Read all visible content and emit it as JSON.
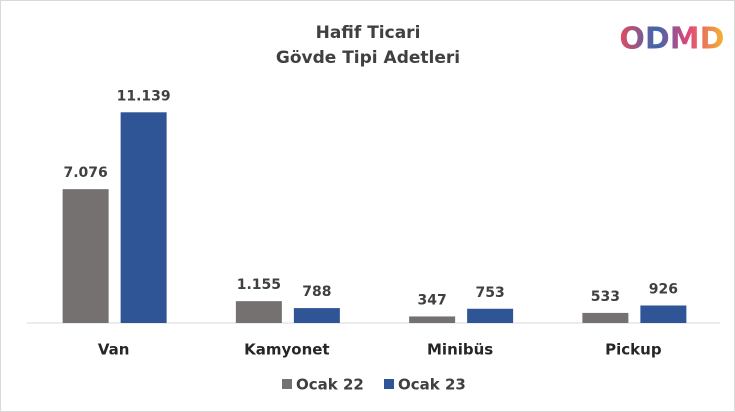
{
  "chart_data": {
    "type": "bar",
    "title": [
      "Hafif Ticari",
      "Gövde Tipi Adetleri"
    ],
    "logo": "ODMD",
    "categories": [
      "Van",
      "Kamyonet",
      "Minibüs",
      "Pickup"
    ],
    "series": [
      {
        "name": "Ocak 22",
        "color": "#767171",
        "values": [
          7076,
          1155,
          347,
          533
        ],
        "value_labels": [
          "7.076",
          "1.155",
          "347",
          "533"
        ]
      },
      {
        "name": "Ocak 23",
        "color": "#2f5597",
        "values": [
          11139,
          788,
          753,
          926
        ],
        "value_labels": [
          "11.139",
          "788",
          "753",
          "926"
        ]
      }
    ],
    "ylim": [
      0,
      12000
    ],
    "legend": "bottom"
  }
}
